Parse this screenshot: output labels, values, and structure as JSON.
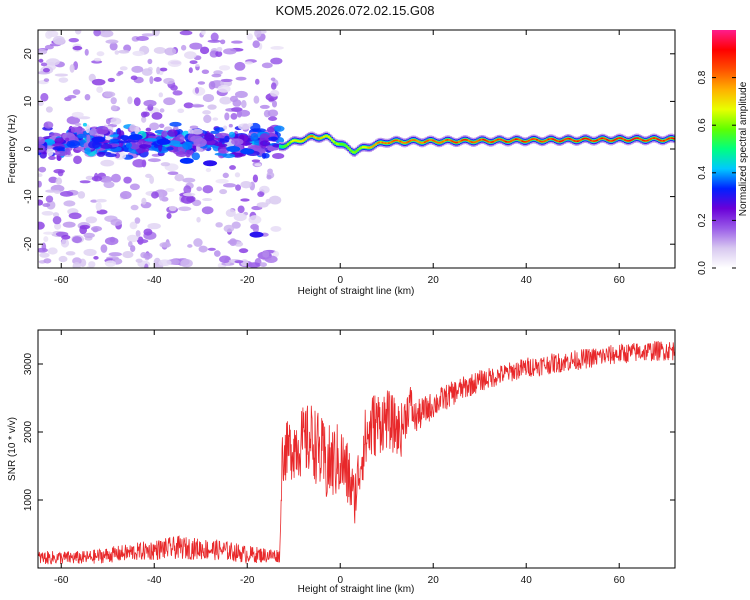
{
  "title": "KOM5.2026.072.02.15.G08",
  "chart_data": [
    {
      "type": "heatmap",
      "panel": "spectrogram",
      "xlabel": "Height of straight line (km)",
      "ylabel": "Frequency (Hz)",
      "xlim": [
        -65,
        72
      ],
      "ylim": [
        -25,
        25
      ],
      "xticks": [
        -60,
        -40,
        -20,
        0,
        20,
        40,
        60
      ],
      "yticks": [
        -20,
        -10,
        0,
        10,
        20
      ],
      "colorbar": {
        "label": "Normalized spectral amplitude",
        "range": [
          0,
          1
        ],
        "ticks": [
          0.0,
          0.2,
          0.4,
          0.6,
          0.8
        ],
        "colors": [
          "#ffffff",
          "#d8c8f0",
          "#9a5ce8",
          "#6a00d8",
          "#0020ff",
          "#00c8ff",
          "#00ff80",
          "#60ff00",
          "#e8ff00",
          "#ffb000",
          "#ff5000",
          "#ff0000",
          "#ff1c8c"
        ]
      },
      "features": {
        "noise_region_km": [
          -65,
          -13
        ],
        "carrier_region_km": [
          -13,
          72
        ],
        "carrier_trace": {
          "x": [
            -13,
            -10,
            -6,
            -3,
            0,
            3,
            6,
            10,
            15,
            20,
            30,
            40,
            50,
            60,
            72
          ],
          "freq": [
            0.5,
            1.5,
            2.5,
            2.5,
            1.0,
            -0.5,
            0.5,
            1.5,
            1.6,
            1.6,
            1.7,
            1.8,
            1.9,
            2.0,
            2.0
          ],
          "amplitude": [
            0.5,
            0.7,
            0.8,
            0.7,
            0.6,
            0.6,
            0.75,
            0.85,
            0.85,
            0.85,
            0.9,
            0.9,
            0.92,
            0.92,
            0.92
          ]
        }
      }
    },
    {
      "type": "line",
      "panel": "snr",
      "xlabel": "Height of straight line (km)",
      "ylabel": "SNR (10 * v/v)",
      "xlim": [
        -65,
        72
      ],
      "ylim": [
        0,
        3500
      ],
      "xticks": [
        -60,
        -40,
        -20,
        0,
        20,
        40,
        60
      ],
      "yticks": [
        1000,
        2000,
        3000
      ],
      "color": "#e8282a",
      "series": [
        {
          "name": "SNR",
          "x": [
            -65,
            -55,
            -45,
            -35,
            -25,
            -20,
            -13,
            -12.5,
            -10,
            -6,
            -3,
            0,
            2,
            3,
            5,
            7,
            10,
            13,
            15,
            16,
            20,
            25,
            30,
            35,
            40,
            45,
            50,
            55,
            60,
            65,
            70,
            72
          ],
          "y": [
            150,
            150,
            230,
            300,
            260,
            200,
            180,
            1650,
            1800,
            1900,
            1500,
            1600,
            1300,
            1000,
            1800,
            2100,
            2200,
            2000,
            2450,
            2200,
            2400,
            2600,
            2750,
            2850,
            2950,
            3000,
            3050,
            3100,
            3150,
            3180,
            3200,
            3200
          ],
          "noise_band": [
            100,
            100,
            130,
            170,
            150,
            130,
            100,
            400,
            500,
            550,
            600,
            550,
            500,
            400,
            500,
            500,
            450,
            400,
            300,
            250,
            200,
            180,
            160,
            150,
            150,
            150,
            150,
            150,
            150,
            150,
            150,
            150
          ]
        }
      ]
    }
  ]
}
